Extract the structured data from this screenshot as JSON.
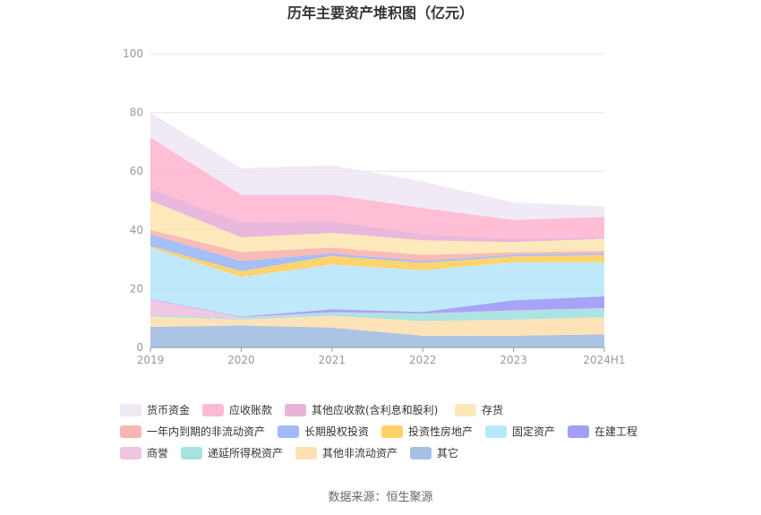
{
  "chart_data": {
    "type": "area",
    "stacked": true,
    "title": "历年主要资产堆积图（亿元）",
    "xlabel": "",
    "ylabel": "",
    "x": [
      "2019",
      "2020",
      "2021",
      "2022",
      "2023",
      "2024H1"
    ],
    "ylim": [
      0,
      100
    ],
    "yticks": [
      0,
      20,
      40,
      60,
      80,
      100
    ],
    "grid": true,
    "legend_position": "bottom",
    "series": [
      {
        "name": "其它",
        "color": "#8fb0dc",
        "values": [
          7.0,
          7.5,
          6.8,
          4.0,
          4.0,
          4.5
        ]
      },
      {
        "name": "其他非流动资产",
        "color": "#fdd9a0",
        "values": [
          3.5,
          2.0,
          4.0,
          5.0,
          5.5,
          5.8
        ]
      },
      {
        "name": "递延所得税资产",
        "color": "#8fdbd8",
        "values": [
          0.5,
          0.5,
          1.0,
          2.5,
          3.0,
          3.0
        ]
      },
      {
        "name": "商誉",
        "color": "#ebb5d9",
        "values": [
          5.3,
          0.3,
          0.2,
          0.1,
          0.1,
          0.1
        ]
      },
      {
        "name": "在建工程",
        "color": "#8a86f5",
        "values": [
          0.2,
          0.2,
          1.0,
          0.5,
          3.5,
          4.0
        ]
      },
      {
        "name": "固定资产",
        "color": "#a9e2fa",
        "values": [
          17.5,
          13.5,
          15.2,
          14.2,
          12.9,
          11.6
        ]
      },
      {
        "name": "投资性房地产",
        "color": "#ffc53d",
        "values": [
          0.5,
          2.0,
          3.0,
          2.5,
          2.0,
          2.5
        ]
      },
      {
        "name": "长期股权投资",
        "color": "#88aaf5",
        "values": [
          4.0,
          3.5,
          0.8,
          0.7,
          0.6,
          0.6
        ]
      },
      {
        "name": "一年内到期的非流动资产",
        "color": "#f8a39c",
        "values": [
          1.5,
          3.0,
          2.0,
          2.0,
          0.8,
          0.8
        ]
      },
      {
        "name": "存货",
        "color": "#fde2a6",
        "values": [
          10.0,
          5.0,
          5.0,
          5.0,
          3.5,
          4.1
        ]
      },
      {
        "name": "其他应收款(含利息和股利)",
        "color": "#e2a0d0",
        "values": [
          4.0,
          5.0,
          4.0,
          2.0,
          1.0,
          0.5
        ]
      },
      {
        "name": "应收账款",
        "color": "#fca8c8",
        "values": [
          17.5,
          9.5,
          9.0,
          9.0,
          6.5,
          7.0
        ]
      },
      {
        "name": "货币资金",
        "color": "#ece2f1",
        "values": [
          8.5,
          9.0,
          10.0,
          9.0,
          6.0,
          3.5
        ]
      }
    ],
    "legend_order": [
      "货币资金",
      "应收账款",
      "其他应收款(含利息和股利)",
      "存货",
      "一年内到期的非流动资产",
      "长期股权投资",
      "投资性房地产",
      "固定资产",
      "在建工程",
      "商誉",
      "递延所得税资产",
      "其他非流动资产",
      "其它"
    ],
    "source": "数据来源：恒生聚源"
  }
}
